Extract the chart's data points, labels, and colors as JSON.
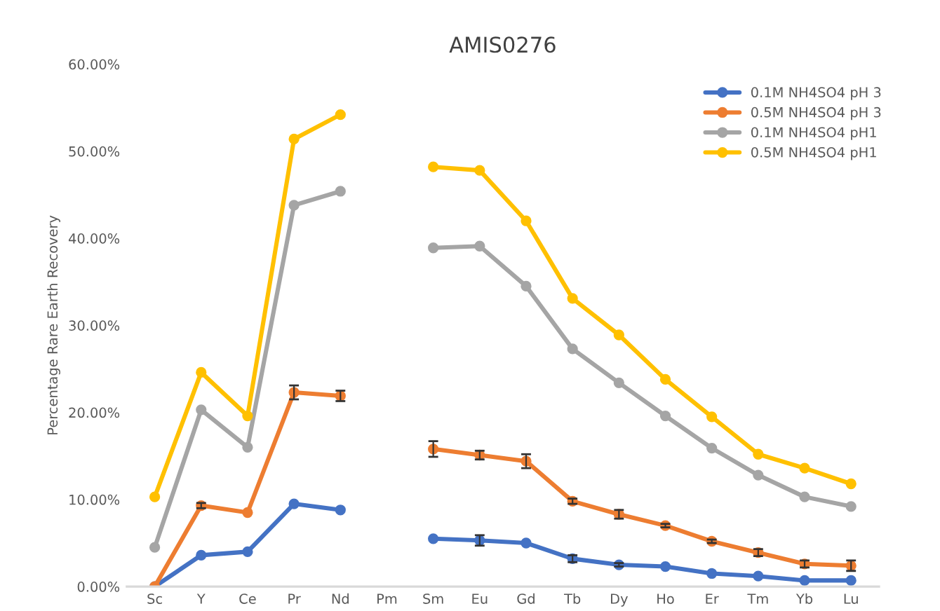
{
  "chart_data": {
    "type": "line",
    "title": "AMIS0276",
    "ylabel": "Percentage Rare Earth Recovery",
    "categories": [
      "Sc",
      "Y",
      "Ce",
      "Pr",
      "Nd",
      "Pm",
      "Sm",
      "Eu",
      "Gd",
      "Tb",
      "Dy",
      "Ho",
      "Er",
      "Tm",
      "Yb",
      "Lu"
    ],
    "series": [
      {
        "name": "0.1M NH4SO4 pH 3",
        "color": "#4472c4",
        "values": [
          0,
          3.6,
          4.0,
          9.5,
          8.8,
          null,
          5.5,
          5.3,
          5.0,
          3.2,
          2.5,
          2.3,
          1.5,
          1.2,
          0.7,
          0.7
        ],
        "errors": [
          null,
          null,
          null,
          null,
          null,
          null,
          null,
          0.6,
          null,
          0.4,
          0.2,
          null,
          null,
          null,
          null,
          null
        ]
      },
      {
        "name": "0.5M NH4SO4 pH 3",
        "color": "#ed7d31",
        "values": [
          0,
          9.3,
          8.5,
          22.3,
          21.9,
          null,
          15.8,
          15.1,
          14.4,
          9.8,
          8.3,
          7.0,
          5.2,
          3.9,
          2.6,
          2.4
        ],
        "errors": [
          null,
          0.3,
          null,
          0.8,
          0.6,
          null,
          0.9,
          0.5,
          0.8,
          0.3,
          0.5,
          0.2,
          0.2,
          0.4,
          0.4,
          0.6
        ]
      },
      {
        "name": "0.1M NH4SO4 pH1",
        "color": "#a5a5a5",
        "values": [
          4.5,
          20.3,
          16.0,
          43.8,
          45.4,
          null,
          38.9,
          39.1,
          34.5,
          27.3,
          23.4,
          19.6,
          15.9,
          12.8,
          10.3,
          9.2
        ]
      },
      {
        "name": "0.5M NH4SO4 pH1",
        "color": "#ffc000",
        "values": [
          10.3,
          24.6,
          19.6,
          51.4,
          54.2,
          null,
          48.2,
          47.8,
          42.0,
          33.1,
          28.9,
          23.8,
          19.5,
          15.2,
          13.6,
          11.8
        ]
      }
    ],
    "ylim": [
      0,
      60
    ],
    "yticks": [
      {
        "value": 0,
        "label": "0.00%"
      },
      {
        "value": 10,
        "label": "10.00%"
      },
      {
        "value": 20,
        "label": "20.00%"
      },
      {
        "value": 30,
        "label": "30.00%"
      },
      {
        "value": 40,
        "label": "40.00%"
      },
      {
        "value": 50,
        "label": "50.00%"
      },
      {
        "value": 60,
        "label": "60.00%"
      }
    ],
    "grid": false,
    "legend": "top right",
    "marker": "circle",
    "line_style": "solid"
  }
}
